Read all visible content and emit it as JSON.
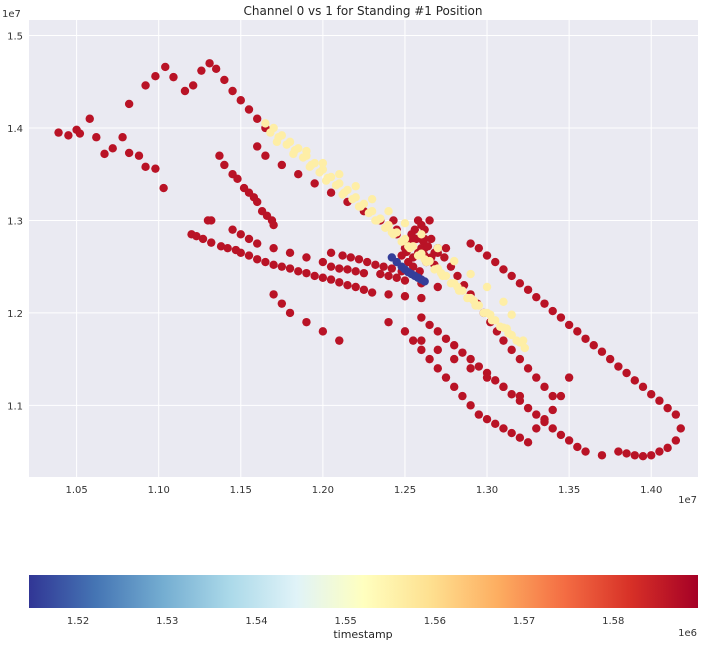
{
  "chart_data": {
    "type": "scatter",
    "title": "Channel 0 vs 1 for Standing #1 Position",
    "xlabel": "",
    "ylabel": "",
    "x_offset_label": "1e7",
    "y_offset_label": "1e7",
    "xlim": [
      1.021,
      1.4285
    ],
    "ylim": [
      1.0225,
      1.5168
    ],
    "x_ticks": [
      "1.05",
      "1.10",
      "1.15",
      "1.20",
      "1.25",
      "1.30",
      "1.35",
      "1.40"
    ],
    "y_ticks": [
      "1.1",
      "1.2",
      "1.3",
      "1.4",
      "1.5"
    ],
    "grid": true,
    "colormap": "RdYlBu_r",
    "colorbar": {
      "label": "timestamp",
      "offset_label": "1e6",
      "range": [
        1.5145,
        1.5895
      ],
      "ticks": [
        "1.52",
        "1.53",
        "1.54",
        "1.55",
        "1.56",
        "1.57",
        "1.58"
      ]
    },
    "colors": {
      "plot_bg": "#eaeaf2",
      "grid": "#ffffff",
      "low": "#313695",
      "mid": "#ffffbf",
      "high": "#a50026"
    },
    "series": [
      {
        "timestamp": 1.5865,
        "x": [
          1.039,
          1.045,
          1.05,
          1.052,
          1.058,
          1.062,
          1.067,
          1.072,
          1.078,
          1.082,
          1.088,
          1.092,
          1.098,
          1.103,
          1.082,
          1.092,
          1.098,
          1.104,
          1.109,
          1.116,
          1.121,
          1.126,
          1.131,
          1.135,
          1.14,
          1.145,
          1.15,
          1.155,
          1.16,
          1.165,
          1.137,
          1.14,
          1.145,
          1.148,
          1.152,
          1.155,
          1.158,
          1.16,
          1.163,
          1.166,
          1.169,
          1.17,
          1.13,
          1.132,
          1.145,
          1.15,
          1.155,
          1.16,
          1.17,
          1.18,
          1.19,
          1.2,
          1.205,
          1.21,
          1.215,
          1.22,
          1.225,
          1.235,
          1.24,
          1.245,
          1.25,
          1.26,
          1.27,
          1.12,
          1.123,
          1.127,
          1.132,
          1.138,
          1.142,
          1.147,
          1.15,
          1.155,
          1.16,
          1.165,
          1.17,
          1.175,
          1.18,
          1.185,
          1.19,
          1.195,
          1.2,
          1.205,
          1.21,
          1.215,
          1.22,
          1.225,
          1.23,
          1.24,
          1.25,
          1.26,
          1.205,
          1.212,
          1.217,
          1.222,
          1.227,
          1.232,
          1.237,
          1.242,
          1.248,
          1.16,
          1.165,
          1.175,
          1.185,
          1.195,
          1.205,
          1.215,
          1.225,
          1.235,
          1.245,
          1.255,
          1.262,
          1.268,
          1.258,
          1.262,
          1.266,
          1.27,
          1.274,
          1.278,
          1.282,
          1.286,
          1.29,
          1.294,
          1.298,
          1.302,
          1.306,
          1.31,
          1.315,
          1.32,
          1.325,
          1.33,
          1.335,
          1.34,
          1.29,
          1.295,
          1.3,
          1.305,
          1.31,
          1.315,
          1.32,
          1.325,
          1.33,
          1.335,
          1.34,
          1.345,
          1.35,
          1.355,
          1.36,
          1.365,
          1.37,
          1.375,
          1.38,
          1.385,
          1.39,
          1.395,
          1.4,
          1.405,
          1.41,
          1.415,
          1.418,
          1.415,
          1.41,
          1.405,
          1.4,
          1.395,
          1.39,
          1.385,
          1.38,
          1.37,
          1.36,
          1.355,
          1.35,
          1.345,
          1.34,
          1.335,
          1.33,
          1.325,
          1.32,
          1.315,
          1.31,
          1.305,
          1.3,
          1.295,
          1.29,
          1.285,
          1.28,
          1.275,
          1.27,
          1.265,
          1.26,
          1.255,
          1.26,
          1.265,
          1.27,
          1.275,
          1.28,
          1.285,
          1.29,
          1.295,
          1.3,
          1.305,
          1.31,
          1.315,
          1.32,
          1.325,
          1.33,
          1.335,
          1.34,
          1.345,
          1.35,
          1.17,
          1.175,
          1.18,
          1.19,
          1.2,
          1.21,
          1.24,
          1.25,
          1.26,
          1.27,
          1.28,
          1.29,
          1.3,
          1.31,
          1.32,
          1.252,
          1.255,
          1.258,
          1.26,
          1.262,
          1.265,
          1.268,
          1.25,
          1.253,
          1.257,
          1.261,
          1.264,
          1.248,
          1.251,
          1.255,
          1.259,
          1.263,
          1.266,
          1.256,
          1.26,
          1.254,
          1.262,
          1.258,
          1.25,
          1.245,
          1.243,
          1.27,
          1.275,
          1.265
        ],
        "y": [
          1.395,
          1.392,
          1.398,
          1.394,
          1.41,
          1.39,
          1.372,
          1.378,
          1.39,
          1.373,
          1.37,
          1.358,
          1.356,
          1.335,
          1.426,
          1.446,
          1.456,
          1.466,
          1.455,
          1.44,
          1.446,
          1.462,
          1.47,
          1.464,
          1.452,
          1.44,
          1.43,
          1.42,
          1.41,
          1.4,
          1.37,
          1.36,
          1.35,
          1.345,
          1.335,
          1.33,
          1.325,
          1.32,
          1.31,
          1.305,
          1.3,
          1.295,
          1.3,
          1.3,
          1.29,
          1.285,
          1.28,
          1.275,
          1.27,
          1.265,
          1.26,
          1.255,
          1.25,
          1.248,
          1.247,
          1.245,
          1.243,
          1.242,
          1.24,
          1.238,
          1.235,
          1.232,
          1.228,
          1.285,
          1.283,
          1.28,
          1.276,
          1.272,
          1.27,
          1.268,
          1.265,
          1.262,
          1.258,
          1.255,
          1.252,
          1.25,
          1.248,
          1.245,
          1.243,
          1.24,
          1.238,
          1.236,
          1.233,
          1.23,
          1.228,
          1.225,
          1.222,
          1.22,
          1.218,
          1.216,
          1.265,
          1.262,
          1.26,
          1.258,
          1.255,
          1.252,
          1.25,
          1.248,
          1.245,
          1.38,
          1.37,
          1.36,
          1.35,
          1.34,
          1.33,
          1.32,
          1.31,
          1.3,
          1.29,
          1.28,
          1.27,
          1.265,
          1.3,
          1.29,
          1.28,
          1.27,
          1.26,
          1.25,
          1.24,
          1.23,
          1.22,
          1.21,
          1.2,
          1.19,
          1.18,
          1.17,
          1.16,
          1.15,
          1.14,
          1.13,
          1.12,
          1.11,
          1.275,
          1.27,
          1.262,
          1.255,
          1.247,
          1.24,
          1.232,
          1.225,
          1.217,
          1.21,
          1.202,
          1.195,
          1.187,
          1.18,
          1.172,
          1.165,
          1.158,
          1.15,
          1.142,
          1.135,
          1.127,
          1.12,
          1.112,
          1.105,
          1.097,
          1.09,
          1.075,
          1.062,
          1.054,
          1.05,
          1.046,
          1.045,
          1.046,
          1.048,
          1.05,
          1.046,
          1.05,
          1.055,
          1.062,
          1.068,
          1.075,
          1.082,
          1.09,
          1.097,
          1.105,
          1.112,
          1.12,
          1.127,
          1.135,
          1.142,
          1.15,
          1.157,
          1.165,
          1.172,
          1.18,
          1.187,
          1.195,
          1.17,
          1.16,
          1.15,
          1.14,
          1.13,
          1.12,
          1.11,
          1.1,
          1.09,
          1.085,
          1.08,
          1.075,
          1.07,
          1.065,
          1.06,
          1.075,
          1.085,
          1.095,
          1.11,
          1.13,
          1.22,
          1.21,
          1.2,
          1.19,
          1.18,
          1.17,
          1.19,
          1.18,
          1.17,
          1.16,
          1.15,
          1.14,
          1.13,
          1.12,
          1.11,
          1.255,
          1.26,
          1.265,
          1.27,
          1.262,
          1.258,
          1.252,
          1.27,
          1.275,
          1.28,
          1.278,
          1.272,
          1.262,
          1.266,
          1.25,
          1.245,
          1.255,
          1.26,
          1.29,
          1.295,
          1.285,
          1.28,
          1.24,
          1.275,
          1.285,
          1.3,
          1.265,
          1.27,
          1.3
        ]
      },
      {
        "timestamp": 1.556,
        "x": [
          1.165,
          1.17,
          1.175,
          1.18,
          1.185,
          1.19,
          1.195,
          1.2,
          1.205,
          1.21,
          1.215,
          1.22,
          1.225,
          1.23,
          1.235,
          1.24,
          1.245,
          1.25,
          1.255,
          1.26,
          1.265,
          1.27,
          1.275,
          1.28,
          1.285,
          1.29,
          1.295,
          1.3,
          1.305,
          1.31,
          1.315,
          1.32,
          1.168,
          1.173,
          1.178,
          1.183,
          1.188,
          1.193,
          1.198,
          1.203,
          1.208,
          1.213,
          1.218,
          1.223,
          1.228,
          1.233,
          1.238,
          1.243,
          1.248,
          1.253,
          1.258,
          1.263,
          1.268,
          1.273,
          1.278,
          1.283,
          1.288,
          1.293,
          1.298,
          1.303,
          1.308,
          1.313,
          1.318,
          1.323,
          1.172,
          1.182,
          1.192,
          1.202,
          1.212,
          1.222,
          1.232,
          1.242,
          1.252,
          1.262,
          1.272,
          1.282,
          1.292,
          1.302,
          1.312,
          1.322,
          1.19,
          1.2,
          1.21,
          1.22,
          1.23,
          1.24,
          1.25,
          1.26,
          1.27,
          1.28,
          1.29,
          1.3,
          1.31,
          1.315
        ],
        "y": [
          1.405,
          1.4,
          1.392,
          1.385,
          1.378,
          1.37,
          1.362,
          1.355,
          1.347,
          1.34,
          1.333,
          1.325,
          1.318,
          1.31,
          1.302,
          1.295,
          1.287,
          1.28,
          1.272,
          1.264,
          1.256,
          1.248,
          1.24,
          1.232,
          1.224,
          1.216,
          1.208,
          1.2,
          1.192,
          1.184,
          1.176,
          1.168,
          1.395,
          1.39,
          1.382,
          1.376,
          1.368,
          1.36,
          1.352,
          1.346,
          1.338,
          1.33,
          1.323,
          1.315,
          1.308,
          1.3,
          1.292,
          1.285,
          1.277,
          1.27,
          1.262,
          1.255,
          1.247,
          1.24,
          1.232,
          1.224,
          1.216,
          1.208,
          1.2,
          1.192,
          1.185,
          1.178,
          1.17,
          1.162,
          1.385,
          1.372,
          1.358,
          1.343,
          1.328,
          1.315,
          1.3,
          1.287,
          1.272,
          1.258,
          1.243,
          1.228,
          1.213,
          1.198,
          1.183,
          1.17,
          1.375,
          1.362,
          1.35,
          1.337,
          1.323,
          1.31,
          1.297,
          1.285,
          1.27,
          1.256,
          1.242,
          1.228,
          1.212,
          1.198
        ]
      },
      {
        "timestamp": 1.5155,
        "x": [
          1.242,
          1.245,
          1.248,
          1.25,
          1.252,
          1.254,
          1.256,
          1.258,
          1.26,
          1.262
        ],
        "y": [
          1.26,
          1.255,
          1.25,
          1.247,
          1.244,
          1.242,
          1.24,
          1.238,
          1.236,
          1.234
        ]
      }
    ]
  }
}
